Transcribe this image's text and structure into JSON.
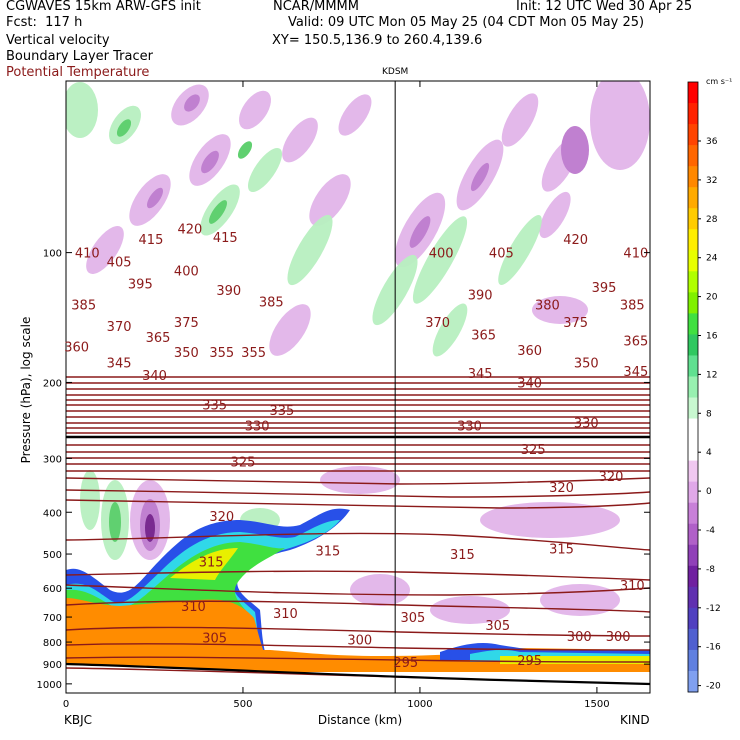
{
  "header": {
    "model": "CGWAVES 15km ARW-GFS init",
    "fcst": "Fcst:  117 h",
    "field1": "Vertical velocity",
    "field2": "Boundary Layer Tracer",
    "field3": "Potential Temperature",
    "org": "NCAR/MMMM",
    "init": "Init: 12 UTC Wed 30 Apr 25",
    "valid": "Valid: 09 UTC Mon 05 May 25 (04 CDT Mon 05 May 25)",
    "xy": "XY= 150.5,136.9 to 260.4,139.6",
    "field3_color": "#8b1a1a"
  },
  "chart_data": {
    "type": "cross-section",
    "xlabel": "Distance (km)",
    "ylabel": "Pressure (hPa), log scale",
    "xlim": [
      0,
      1650
    ],
    "ylim": [
      1050,
      40
    ],
    "x_ticks": [
      0,
      500,
      1000,
      1500
    ],
    "y_ticks": [
      100,
      200,
      300,
      400,
      500,
      600,
      700,
      800,
      900,
      1000
    ],
    "left_station": "KBJC",
    "right_station": "KIND",
    "marker_station": "KDSM",
    "marker_x": 930,
    "colorbar": {
      "unit": "cm s⁻¹",
      "labels": [
        36,
        32,
        28,
        24,
        20,
        16,
        12,
        8,
        4,
        0,
        -4,
        -8,
        -12,
        -16,
        -20
      ],
      "colors": [
        "#ff0000",
        "#ff2200",
        "#ff4400",
        "#ff6600",
        "#ff8800",
        "#ffaa00",
        "#ffcc00",
        "#ffee00",
        "#e8ff00",
        "#b0ff00",
        "#80f000",
        "#40e040",
        "#30c860",
        "#60e090",
        "#98f0b0",
        "#c8f8d0",
        "#ffffff",
        "#ffffff",
        "#f0c8f0",
        "#e0a8e8",
        "#c880d8",
        "#b060c8",
        "#9040b8",
        "#7020a0",
        "#6030b0",
        "#5040c0",
        "#5060d0",
        "#6080e0",
        "#80a0f0"
      ]
    },
    "theta_labels": [
      {
        "x": 60,
        "p": 100,
        "v": "410"
      },
      {
        "x": 150,
        "p": 105,
        "v": "405"
      },
      {
        "x": 240,
        "p": 93,
        "v": "415"
      },
      {
        "x": 350,
        "p": 88,
        "v": "420"
      },
      {
        "x": 450,
        "p": 92,
        "v": "415"
      },
      {
        "x": 340,
        "p": 110,
        "v": "400"
      },
      {
        "x": 210,
        "p": 118,
        "v": "395"
      },
      {
        "x": 460,
        "p": 122,
        "v": "390"
      },
      {
        "x": 50,
        "p": 132,
        "v": "385"
      },
      {
        "x": 580,
        "p": 130,
        "v": "385"
      },
      {
        "x": 150,
        "p": 148,
        "v": "370"
      },
      {
        "x": 340,
        "p": 145,
        "v": "375"
      },
      {
        "x": 30,
        "p": 165,
        "v": "360"
      },
      {
        "x": 260,
        "p": 157,
        "v": "365"
      },
      {
        "x": 340,
        "p": 170,
        "v": "350"
      },
      {
        "x": 440,
        "p": 170,
        "v": "355"
      },
      {
        "x": 530,
        "p": 170,
        "v": "355"
      },
      {
        "x": 150,
        "p": 180,
        "v": "345"
      },
      {
        "x": 250,
        "p": 192,
        "v": "340"
      },
      {
        "x": 420,
        "p": 225,
        "v": "335"
      },
      {
        "x": 610,
        "p": 232,
        "v": "335"
      },
      {
        "x": 540,
        "p": 252,
        "v": "330"
      },
      {
        "x": 500,
        "p": 305,
        "v": "325"
      },
      {
        "x": 440,
        "p": 408,
        "v": "320"
      },
      {
        "x": 410,
        "p": 520,
        "v": "315"
      },
      {
        "x": 360,
        "p": 660,
        "v": "310"
      },
      {
        "x": 420,
        "p": 780,
        "v": "305"
      },
      {
        "x": 830,
        "p": 790,
        "v": "300"
      },
      {
        "x": 620,
        "p": 685,
        "v": "310"
      },
      {
        "x": 980,
        "p": 700,
        "v": "305"
      },
      {
        "x": 960,
        "p": 890,
        "v": "295"
      },
      {
        "x": 740,
        "p": 490,
        "v": "315"
      },
      {
        "x": 1060,
        "p": 100,
        "v": "400"
      },
      {
        "x": 1230,
        "p": 100,
        "v": "405"
      },
      {
        "x": 1440,
        "p": 93,
        "v": "420"
      },
      {
        "x": 1610,
        "p": 100,
        "v": "410"
      },
      {
        "x": 1520,
        "p": 120,
        "v": "395"
      },
      {
        "x": 1600,
        "p": 132,
        "v": "385"
      },
      {
        "x": 1170,
        "p": 125,
        "v": "390"
      },
      {
        "x": 1360,
        "p": 132,
        "v": "380"
      },
      {
        "x": 1440,
        "p": 145,
        "v": "375"
      },
      {
        "x": 1050,
        "p": 145,
        "v": "370"
      },
      {
        "x": 1180,
        "p": 155,
        "v": "365"
      },
      {
        "x": 1610,
        "p": 160,
        "v": "365"
      },
      {
        "x": 1310,
        "p": 168,
        "v": "360"
      },
      {
        "x": 1470,
        "p": 180,
        "v": "350"
      },
      {
        "x": 1170,
        "p": 190,
        "v": "345"
      },
      {
        "x": 1310,
        "p": 200,
        "v": "340"
      },
      {
        "x": 1610,
        "p": 188,
        "v": "345"
      },
      {
        "x": 1140,
        "p": 252,
        "v": "330"
      },
      {
        "x": 1470,
        "p": 248,
        "v": "330"
      },
      {
        "x": 1320,
        "p": 285,
        "v": "325"
      },
      {
        "x": 1400,
        "p": 350,
        "v": "320"
      },
      {
        "x": 1540,
        "p": 330,
        "v": "320"
      },
      {
        "x": 1120,
        "p": 500,
        "v": "315"
      },
      {
        "x": 1400,
        "p": 485,
        "v": "315"
      },
      {
        "x": 1600,
        "p": 590,
        "v": "310"
      },
      {
        "x": 1220,
        "p": 730,
        "v": "305"
      },
      {
        "x": 1450,
        "p": 775,
        "v": "300"
      },
      {
        "x": 1560,
        "p": 775,
        "v": "300"
      },
      {
        "x": 1310,
        "p": 880,
        "v": "295"
      }
    ]
  }
}
